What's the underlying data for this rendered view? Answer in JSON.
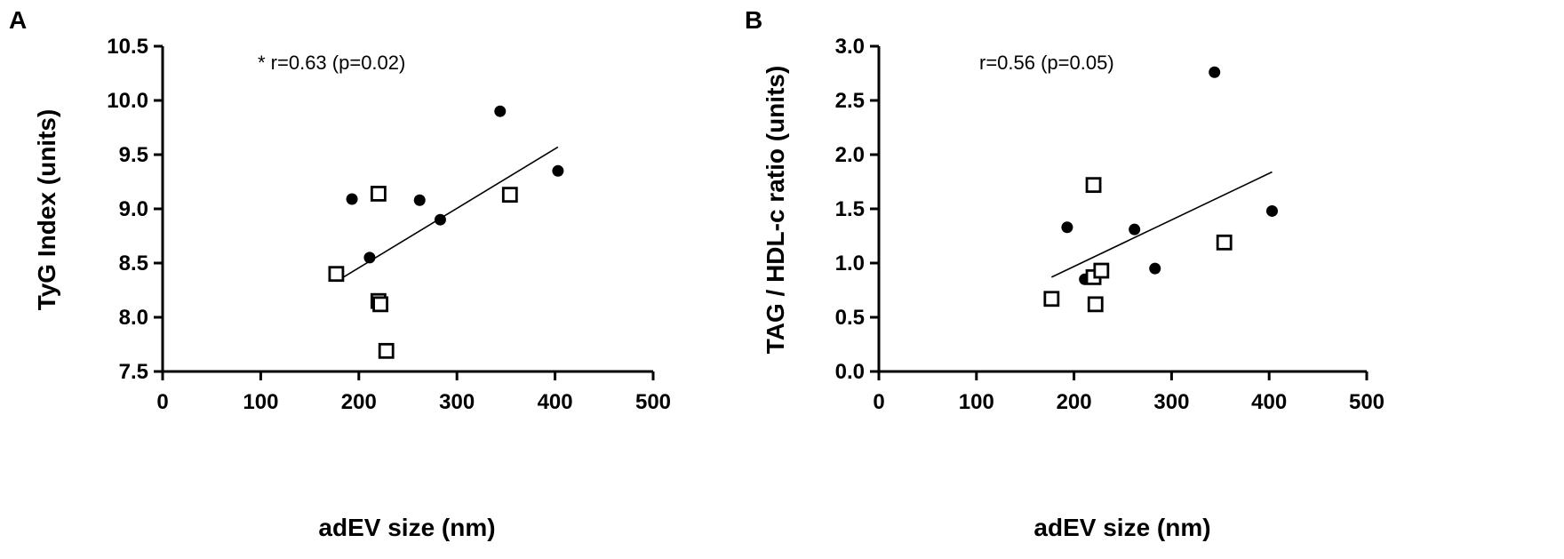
{
  "chart_data": [
    {
      "type": "scatter",
      "panel": "A",
      "xlabel": "adEV size (nm)",
      "ylabel": "TyG Index (units)",
      "xlim": [
        0,
        500
      ],
      "ylim": [
        7.5,
        10.5
      ],
      "xticks": [
        "0",
        "100",
        "200",
        "300",
        "400",
        "500"
      ],
      "yticks": [
        "7.5",
        "8.0",
        "8.5",
        "9.0",
        "9.5",
        "10.0",
        "10.5"
      ],
      "annotation": "* r=0.63 (p=0.02)",
      "grid": false,
      "series": [
        {
          "marker": "filled-circle",
          "points": [
            [
              193,
              9.09
            ],
            [
              211,
              8.55
            ],
            [
              262,
              9.08
            ],
            [
              283,
              8.9
            ],
            [
              344,
              9.9
            ],
            [
              403,
              9.35
            ]
          ]
        },
        {
          "marker": "open-square",
          "points": [
            [
              177,
              8.4
            ],
            [
              220,
              9.14
            ],
            [
              220,
              8.15
            ],
            [
              222,
              8.12
            ],
            [
              228,
              7.69
            ],
            [
              354,
              9.13
            ]
          ]
        }
      ],
      "fit_line": [
        [
          177,
          8.33
        ],
        [
          403,
          9.57
        ]
      ]
    },
    {
      "type": "scatter",
      "panel": "B",
      "xlabel": "adEV size (nm)",
      "ylabel": "TAG / HDL-c ratio (units)",
      "xlim": [
        0,
        500
      ],
      "ylim": [
        0.0,
        3.0
      ],
      "xticks": [
        "0",
        "100",
        "200",
        "300",
        "400",
        "500"
      ],
      "yticks": [
        "0.0",
        "0.5",
        "1.0",
        "1.5",
        "2.0",
        "2.5",
        "3.0"
      ],
      "annotation": "r=0.56 (p=0.05)",
      "grid": false,
      "series": [
        {
          "marker": "filled-circle",
          "points": [
            [
              193,
              1.33
            ],
            [
              211,
              0.85
            ],
            [
              262,
              1.31
            ],
            [
              283,
              0.95
            ],
            [
              344,
              2.76
            ],
            [
              403,
              1.48
            ]
          ]
        },
        {
          "marker": "open-square",
          "points": [
            [
              177,
              0.67
            ],
            [
              220,
              1.72
            ],
            [
              220,
              0.87
            ],
            [
              222,
              0.62
            ],
            [
              228,
              0.93
            ],
            [
              354,
              1.19
            ]
          ]
        }
      ],
      "fit_line": [
        [
          177,
          0.87
        ],
        [
          403,
          1.84
        ]
      ]
    }
  ]
}
